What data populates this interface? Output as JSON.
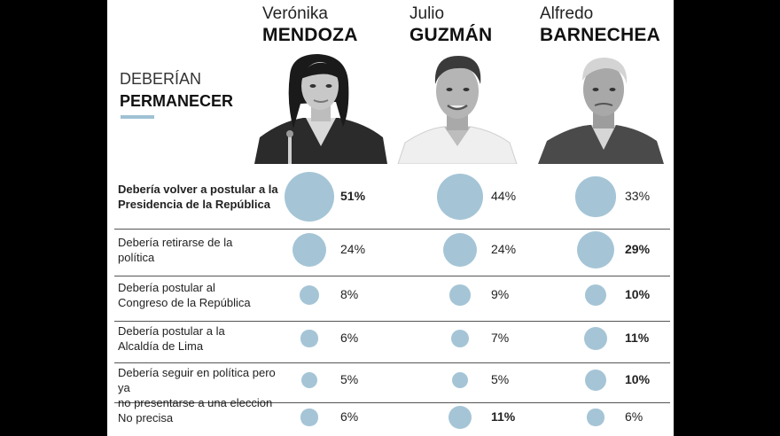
{
  "title": {
    "line1": "DEBERÍAN",
    "line2": "PERMANECER"
  },
  "candidates": [
    {
      "first": "Verónika",
      "last": "MENDOZA",
      "photo_icon": "woman-portrait-icon"
    },
    {
      "first": "Julio",
      "last": "GUZMÁN",
      "photo_icon": "man-portrait-icon"
    },
    {
      "first": "Alfredo",
      "last": "BARNECHEA",
      "photo_icon": "older-man-portrait-icon"
    }
  ],
  "colors": {
    "bubble": "#a5c5d6",
    "accent": "#9fc1d4"
  },
  "chart_data": {
    "type": "table",
    "title": "",
    "categories": [
      "Debería volver a postular a la Presidencia de la República",
      "Debería retirarse de la política",
      "Debería postular al Congreso de la República",
      "Debería postular a la Alcaldía de Lima",
      "Debería seguir en política pero ya no presentarse a una eleccion",
      "No precisa"
    ],
    "category_lines": [
      [
        "Debería volver a postular a la",
        "Presidencia de la República"
      ],
      [
        "Debería retirarse de la",
        "política"
      ],
      [
        "Debería postular al",
        "Congreso de la República"
      ],
      [
        "Debería postular a la",
        "Alcaldía de Lima"
      ],
      [
        "Debería seguir en política pero ya",
        "no presentarse a una eleccion"
      ],
      [
        "No precisa"
      ]
    ],
    "series": [
      {
        "name": "MENDOZA",
        "values": [
          51,
          24,
          8,
          6,
          5,
          6
        ]
      },
      {
        "name": "GUZMÁN",
        "values": [
          44,
          24,
          9,
          7,
          5,
          11
        ]
      },
      {
        "name": "BARNECHEA",
        "values": [
          33,
          29,
          10,
          11,
          10,
          6
        ]
      }
    ],
    "labels": [
      [
        "51%",
        "44%",
        "33%"
      ],
      [
        "24%",
        "24%",
        "29%"
      ],
      [
        "8%",
        "9%",
        "10%"
      ],
      [
        "6%",
        "7%",
        "11%"
      ],
      [
        "5%",
        "5%",
        "10%"
      ],
      [
        "6%",
        "11%",
        "6%"
      ]
    ],
    "bold_labels": [
      [
        true,
        false,
        false
      ],
      [
        false,
        false,
        true
      ],
      [
        false,
        false,
        true
      ],
      [
        false,
        false,
        true
      ],
      [
        false,
        false,
        true
      ],
      [
        false,
        true,
        false
      ]
    ],
    "bold_category": [
      true,
      false,
      false,
      false,
      false,
      false
    ],
    "unit": "%"
  }
}
